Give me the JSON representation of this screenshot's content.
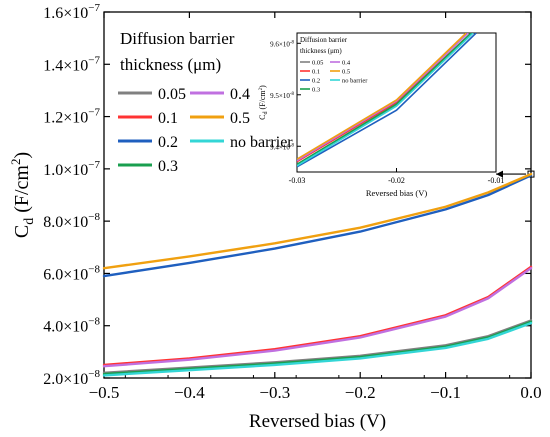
{
  "chart_data": {
    "type": "line",
    "xlabel": "Reversed bias (V)",
    "ylabel": "C",
    "ylabel_sub": "d",
    "ylabel_units": " (F/cm",
    "ylabel_sup": "2",
    "ylabel_close": ")",
    "xlim": [
      -0.5,
      0.0
    ],
    "ylim": [
      2e-08,
      1.6e-07
    ],
    "xticks": [
      -0.5,
      -0.4,
      -0.3,
      -0.2,
      -0.1,
      0.0
    ],
    "xtick_labels": [
      "−0.5",
      "−0.4",
      "−0.3",
      "−0.2",
      "−0.1",
      "0.0"
    ],
    "yticks": [
      2e-08,
      4e-08,
      6e-08,
      8e-08,
      1e-07,
      1.2e-07,
      1.4e-07,
      1.6e-07
    ],
    "ytick_mantissa": [
      "2.0",
      "4.0",
      "6.0",
      "8.0",
      "1.0",
      "1.2",
      "1.4",
      "1.6"
    ],
    "ytick_exponent": [
      "−8",
      "−8",
      "−8",
      "−8",
      "−7",
      "−7",
      "−7",
      "−7"
    ],
    "ytick_times": "×10",
    "grid": false,
    "legend_title_line1": "Diffusion barrier",
    "legend_title_line2": "thickness (μm)",
    "legend_placement": "top-left",
    "series": [
      {
        "name": "0.05",
        "color": "#808080",
        "x": [
          -0.5,
          -0.4,
          -0.3,
          -0.2,
          -0.1,
          -0.05,
          0.0
        ],
        "y": [
          2.2e-08,
          2.4e-08,
          2.6e-08,
          2.85e-08,
          3.25e-08,
          3.6e-08,
          4.2e-08
        ]
      },
      {
        "name": "0.1",
        "color": "#ff3333",
        "x": [
          -0.5,
          -0.4,
          -0.3,
          -0.2,
          -0.1,
          -0.05,
          0.0
        ],
        "y": [
          2.5e-08,
          2.75e-08,
          3.1e-08,
          3.6e-08,
          4.4e-08,
          5.1e-08,
          6.25e-08
        ]
      },
      {
        "name": "0.2",
        "color": "#1f5fbf",
        "x": [
          -0.5,
          -0.4,
          -0.3,
          -0.2,
          -0.1,
          -0.05,
          0.0
        ],
        "y": [
          5.9e-08,
          6.4e-08,
          6.95e-08,
          7.6e-08,
          8.45e-08,
          9e-08,
          9.75e-08
        ]
      },
      {
        "name": "0.3",
        "color": "#1a9f4f",
        "x": [
          -0.5,
          -0.4,
          -0.3,
          -0.2,
          -0.1,
          -0.05,
          0.0
        ],
        "y": [
          2.15e-08,
          2.35e-08,
          2.55e-08,
          2.8e-08,
          3.2e-08,
          3.55e-08,
          4.15e-08
        ]
      },
      {
        "name": "0.4",
        "color": "#c070e0",
        "x": [
          -0.5,
          -0.4,
          -0.3,
          -0.2,
          -0.1,
          -0.05,
          0.0
        ],
        "y": [
          2.45e-08,
          2.7e-08,
          3.05e-08,
          3.55e-08,
          4.35e-08,
          5.05e-08,
          6.2e-08
        ]
      },
      {
        "name": "0.5",
        "color": "#f0a010",
        "x": [
          -0.5,
          -0.4,
          -0.3,
          -0.2,
          -0.1,
          -0.05,
          0.0
        ],
        "y": [
          6.2e-08,
          6.65e-08,
          7.15e-08,
          7.75e-08,
          8.55e-08,
          9.1e-08,
          9.8e-08
        ]
      },
      {
        "name": "no barrier",
        "color": "#33d6d6",
        "x": [
          -0.5,
          -0.4,
          -0.3,
          -0.2,
          -0.1,
          -0.05,
          0.0
        ],
        "y": [
          2.1e-08,
          2.3e-08,
          2.5e-08,
          2.75e-08,
          3.15e-08,
          3.5e-08,
          4.1e-08
        ]
      }
    ],
    "inset": {
      "xlabel": "Reversed bias (V)",
      "ylabel": "C",
      "ylabel_sub": "d",
      "ylabel_units": " (F/cm",
      "ylabel_sup": "2",
      "ylabel_close": ")",
      "xlim": [
        -0.03,
        -0.01
      ],
      "ylim": [
        9.35e-08,
        9.62e-08
      ],
      "xticks": [
        -0.03,
        -0.02,
        -0.01
      ],
      "xtick_labels": [
        "-0.03",
        "-0.02",
        "-0.01"
      ],
      "yticks": [
        9.4e-08,
        9.5e-08,
        9.6e-08
      ],
      "ytick_mantissa": [
        "9.4",
        "9.5",
        "9.6"
      ],
      "ytick_exponent": [
        "-8",
        "-8",
        "-8"
      ],
      "ytick_times": "×10",
      "legend_title_line1": "Diffusion barrier",
      "legend_title_line2": "thickness (μm)",
      "series": [
        {
          "name": "0.05",
          "color": "#808080",
          "x": [
            -0.03,
            -0.02,
            -0.0125
          ],
          "y": [
            9.365e-08,
            9.48e-08,
            9.62e-08
          ]
        },
        {
          "name": "0.1",
          "color": "#ff3333",
          "x": [
            -0.03,
            -0.02,
            -0.0125
          ],
          "y": [
            9.37e-08,
            9.485e-08,
            9.62e-08
          ]
        },
        {
          "name": "0.2",
          "color": "#1f5fbf",
          "x": [
            -0.03,
            -0.02,
            -0.012
          ],
          "y": [
            9.36e-08,
            9.47e-08,
            9.62e-08
          ]
        },
        {
          "name": "0.3",
          "color": "#1a9f4f",
          "x": [
            -0.03,
            -0.02,
            -0.0125
          ],
          "y": [
            9.365e-08,
            9.482e-08,
            9.62e-08
          ]
        },
        {
          "name": "0.4",
          "color": "#c070e0",
          "x": [
            -0.03,
            -0.02,
            -0.0128
          ],
          "y": [
            9.372e-08,
            9.488e-08,
            9.62e-08
          ]
        },
        {
          "name": "0.5",
          "color": "#f0a010",
          "x": [
            -0.03,
            -0.02,
            -0.013
          ],
          "y": [
            9.375e-08,
            9.49e-08,
            9.62e-08
          ]
        },
        {
          "name": "no barrier",
          "color": "#33d6d6",
          "x": [
            -0.03,
            -0.02,
            -0.0123
          ],
          "y": [
            9.362e-08,
            9.478e-08,
            9.62e-08
          ]
        }
      ]
    }
  }
}
